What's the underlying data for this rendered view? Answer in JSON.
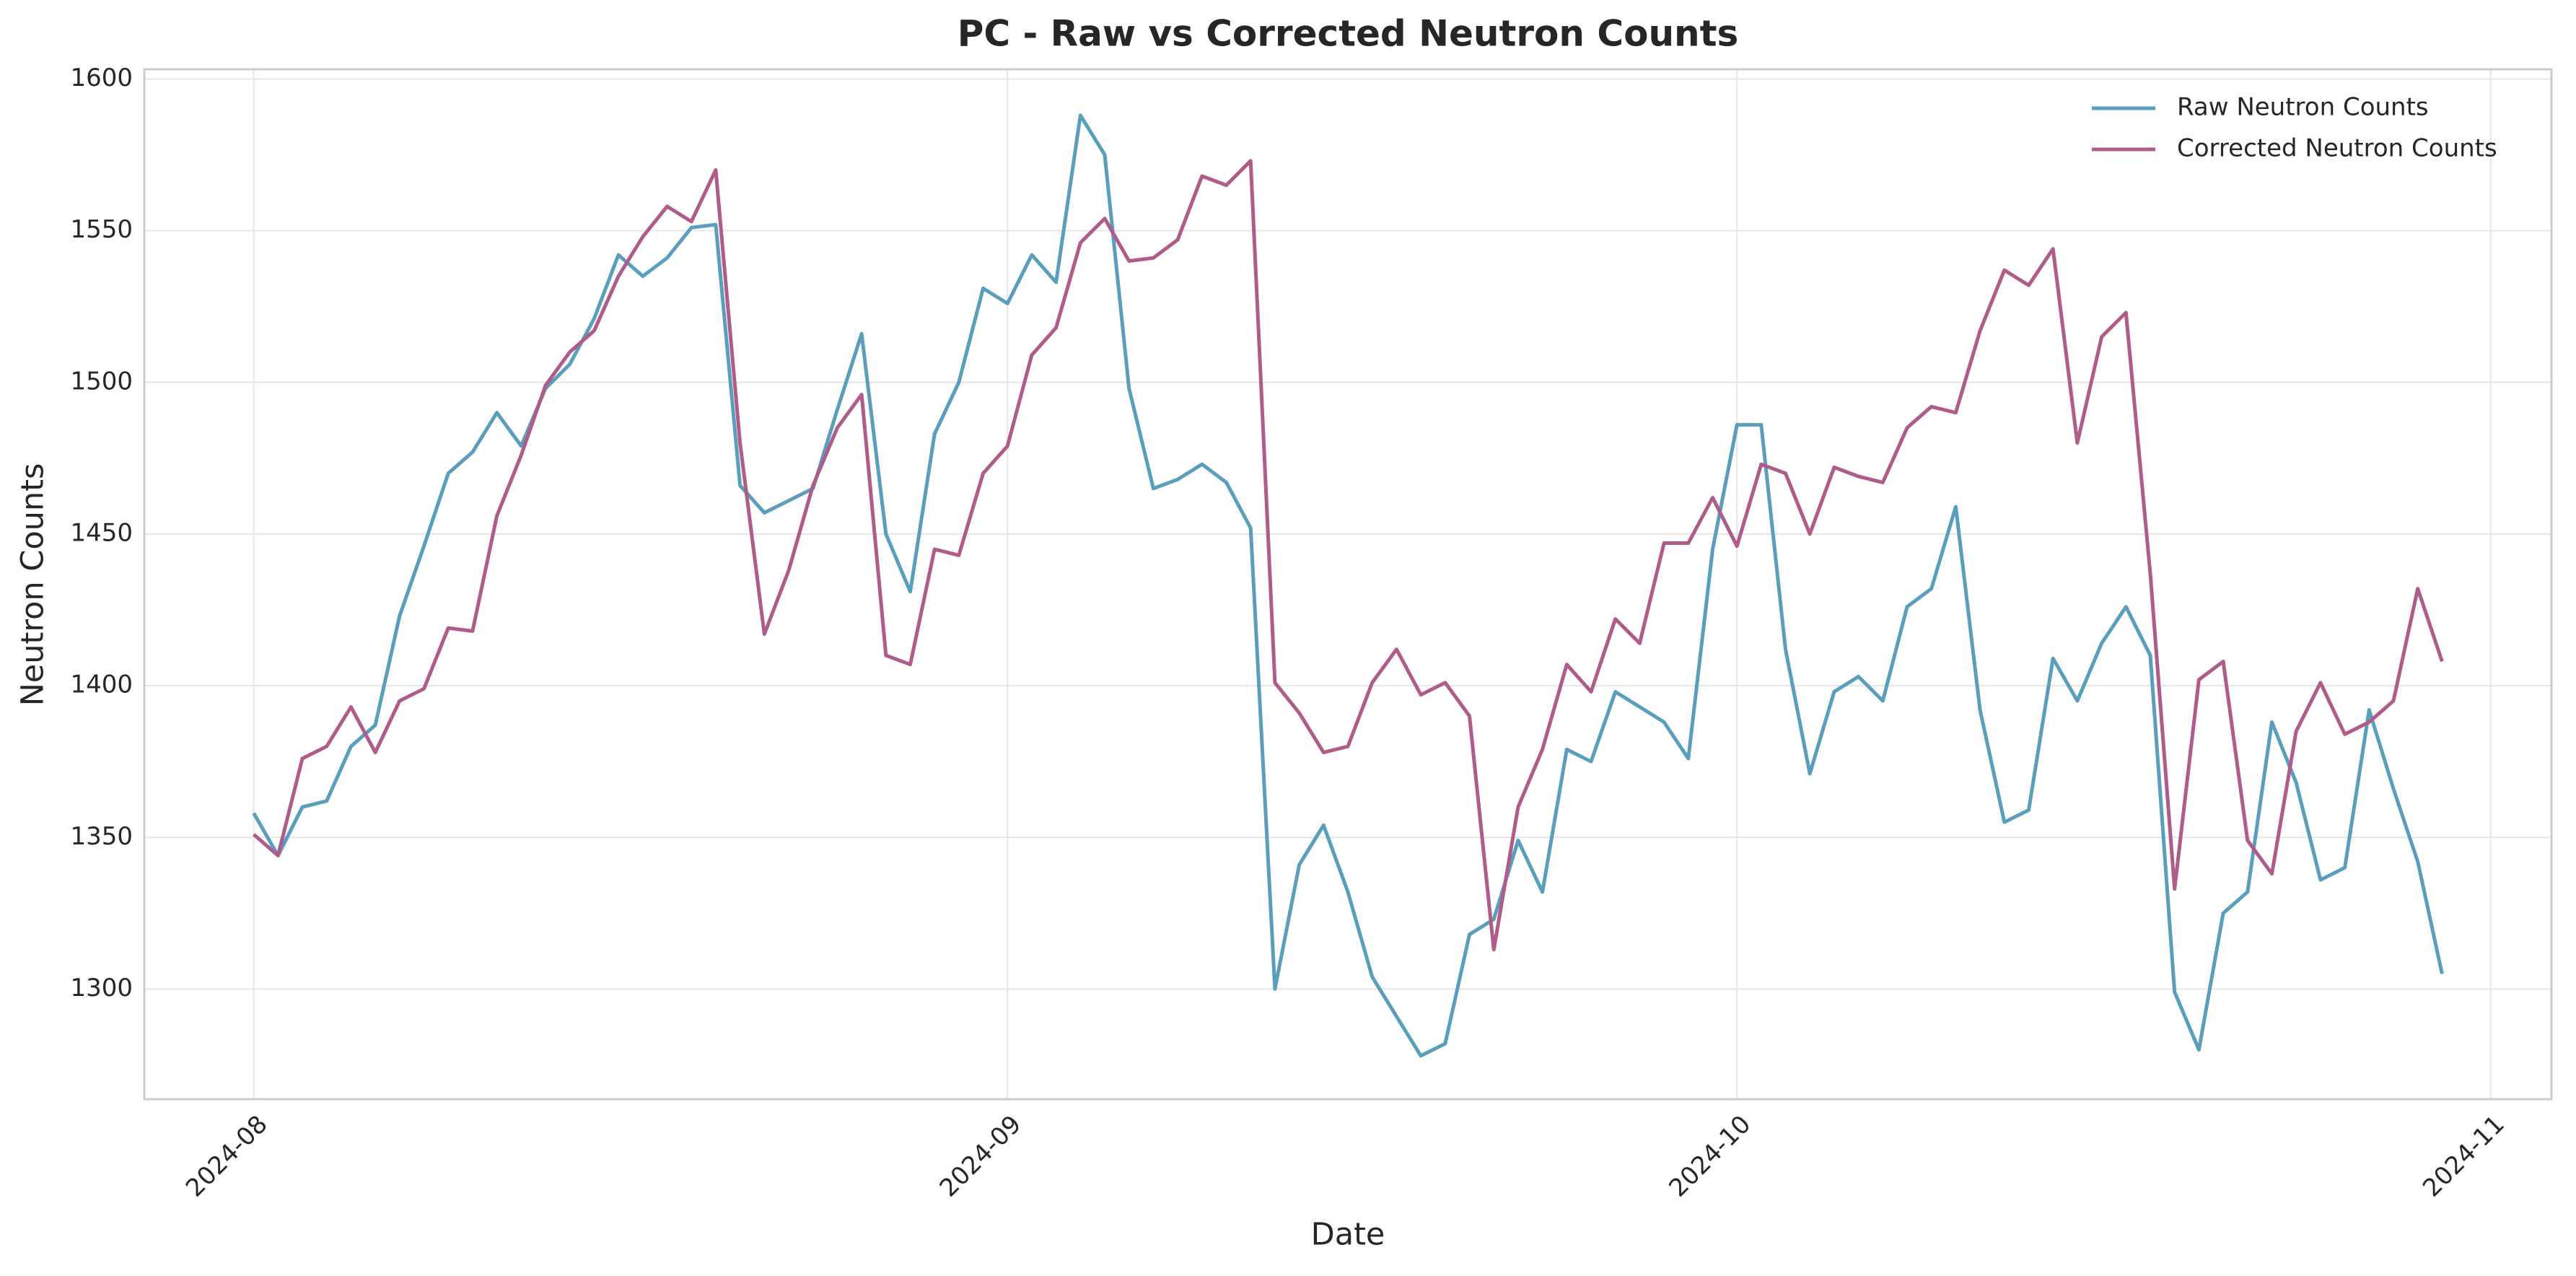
{
  "chart_data": {
    "type": "line",
    "title": "PC - Raw vs Corrected Neutron Counts",
    "xlabel": "Date",
    "ylabel": "Neutron Counts",
    "x": [
      "2024-08-01",
      "2024-08-02",
      "2024-08-03",
      "2024-08-04",
      "2024-08-05",
      "2024-08-06",
      "2024-08-07",
      "2024-08-08",
      "2024-08-09",
      "2024-08-10",
      "2024-08-11",
      "2024-08-12",
      "2024-08-13",
      "2024-08-14",
      "2024-08-15",
      "2024-08-16",
      "2024-08-17",
      "2024-08-18",
      "2024-08-19",
      "2024-08-20",
      "2024-08-21",
      "2024-08-22",
      "2024-08-23",
      "2024-08-24",
      "2024-08-25",
      "2024-08-26",
      "2024-08-27",
      "2024-08-28",
      "2024-08-29",
      "2024-08-30",
      "2024-08-31",
      "2024-09-01",
      "2024-09-02",
      "2024-09-03",
      "2024-09-04",
      "2024-09-05",
      "2024-09-06",
      "2024-09-07",
      "2024-09-08",
      "2024-09-09",
      "2024-09-10",
      "2024-09-11",
      "2024-09-12",
      "2024-09-13",
      "2024-09-14",
      "2024-09-15",
      "2024-09-16",
      "2024-09-17",
      "2024-09-18",
      "2024-09-19",
      "2024-09-20",
      "2024-09-21",
      "2024-09-22",
      "2024-09-23",
      "2024-09-24",
      "2024-09-25",
      "2024-09-26",
      "2024-09-27",
      "2024-09-28",
      "2024-09-29",
      "2024-09-30",
      "2024-10-01",
      "2024-10-02",
      "2024-10-03",
      "2024-10-04",
      "2024-10-05",
      "2024-10-06",
      "2024-10-07",
      "2024-10-08",
      "2024-10-09",
      "2024-10-10",
      "2024-10-11",
      "2024-10-12",
      "2024-10-13",
      "2024-10-14",
      "2024-10-15",
      "2024-10-16",
      "2024-10-17",
      "2024-10-18",
      "2024-10-19",
      "2024-10-20",
      "2024-10-21",
      "2024-10-22",
      "2024-10-23",
      "2024-10-24",
      "2024-10-25",
      "2024-10-26",
      "2024-10-27",
      "2024-10-28",
      "2024-10-29",
      "2024-10-30"
    ],
    "series": [
      {
        "name": "Raw Neutron Counts",
        "color": "#5a9ebd",
        "values": [
          1358,
          1344,
          1360,
          1362,
          1380,
          1387,
          1423,
          1446,
          1470,
          1477,
          1490,
          1479,
          1498,
          1506,
          1521,
          1542,
          1535,
          1541,
          1551,
          1552,
          1466,
          1457,
          1461,
          1465,
          1491,
          1516,
          1450,
          1431,
          1483,
          1500,
          1531,
          1526,
          1542,
          1533,
          1588,
          1575,
          1498,
          1465,
          1468,
          1473,
          1467,
          1452,
          1300,
          1341,
          1354,
          1332,
          1304,
          1291,
          1278,
          1282,
          1318,
          1323,
          1349,
          1332,
          1379,
          1375,
          1398,
          1393,
          1388,
          1376,
          1445,
          1486,
          1486,
          1412,
          1371,
          1398,
          1403,
          1395,
          1426,
          1432,
          1459,
          1392,
          1355,
          1359,
          1409,
          1395,
          1414,
          1426,
          1410,
          1299,
          1280,
          1325,
          1332,
          1388,
          1368,
          1336,
          1340,
          1392,
          1366,
          1342,
          1305
        ]
      },
      {
        "name": "Corrected Neutron Counts",
        "color": "#b05c8a",
        "values": [
          1351,
          1344,
          1376,
          1380,
          1393,
          1378,
          1395,
          1399,
          1419,
          1418,
          1456,
          1476,
          1499,
          1510,
          1517,
          1535,
          1548,
          1558,
          1553,
          1570,
          1480,
          1417,
          1438,
          1466,
          1485,
          1496,
          1410,
          1407,
          1445,
          1443,
          1470,
          1479,
          1509,
          1518,
          1546,
          1554,
          1540,
          1541,
          1547,
          1568,
          1565,
          1573,
          1401,
          1391,
          1378,
          1380,
          1401,
          1412,
          1397,
          1401,
          1390,
          1313,
          1360,
          1379,
          1407,
          1398,
          1422,
          1414,
          1447,
          1447,
          1462,
          1446,
          1473,
          1470,
          1450,
          1472,
          1469,
          1467,
          1485,
          1492,
          1490,
          1517,
          1537,
          1532,
          1544,
          1480,
          1515,
          1523,
          1437,
          1333,
          1402,
          1408,
          1349,
          1338,
          1385,
          1401,
          1384,
          1388,
          1395,
          1432,
          1408
        ]
      }
    ],
    "xlim": [
      "2024-07-27T12:00",
      "2024-11-03T12:00"
    ],
    "xticks": [
      {
        "value": "2024-08-01",
        "label": "2024-08"
      },
      {
        "value": "2024-09-01",
        "label": "2024-09"
      },
      {
        "value": "2024-10-01",
        "label": "2024-10"
      },
      {
        "value": "2024-11-01",
        "label": "2024-11"
      }
    ],
    "ylim": [
      1263.7,
      1603.2
    ],
    "yticks": [
      1300,
      1350,
      1400,
      1450,
      1500,
      1550,
      1600
    ],
    "grid": true,
    "legend": "upper right"
  }
}
